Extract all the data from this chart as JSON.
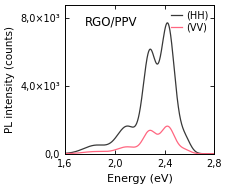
{
  "title": "RGO/PPV",
  "xlabel": "Energy (eV)",
  "ylabel": "PL intensity (counts)",
  "xlim": [
    1.6,
    2.8
  ],
  "ylim": [
    0,
    8800
  ],
  "yticks": [
    0,
    4000,
    8000
  ],
  "ytick_labels": [
    "0,0",
    "4,0×10³",
    "8,0×10³"
  ],
  "xticks": [
    1.6,
    2.0,
    2.4,
    2.8
  ],
  "xtick_labels": [
    "1,6",
    "2,0",
    "2,4",
    "2,8"
  ],
  "hh_color": "#383838",
  "vv_color": "#ff6680",
  "legend_hh": "(HH)",
  "legend_vv": "(VV)",
  "background_color": "#ffffff"
}
